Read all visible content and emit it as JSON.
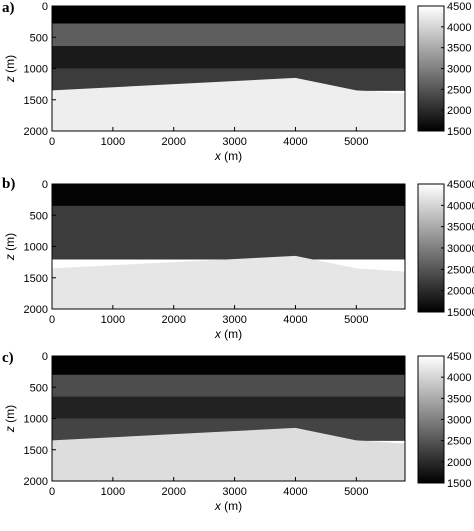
{
  "chart_data": [
    {
      "type": "heatmap",
      "panel": "a)",
      "xlabel": "x (m)",
      "ylabel": "z (m)",
      "xlim": [
        0,
        5800
      ],
      "ylim": [
        2000,
        0
      ],
      "xticks": [
        "0",
        "1000",
        "2000",
        "3000",
        "4000",
        "5000"
      ],
      "yticks": [
        "0",
        "500",
        "1000",
        "1500",
        "2000"
      ],
      "colorbar": {
        "min": 1500,
        "max": 4500,
        "ticks": [
          "1500",
          "2000",
          "2500",
          "3000",
          "3500",
          "4000",
          "4500"
        ],
        "colormap": "gray"
      },
      "layers": [
        {
          "top": 0,
          "bottom": 280,
          "value": 1500
        },
        {
          "top": 280,
          "bottom": 640,
          "value": 2600
        },
        {
          "top": 640,
          "bottom": 1000,
          "value": 1800
        },
        {
          "top": 1000,
          "bottom": 1350,
          "value": 2200
        },
        {
          "top": 1350,
          "bottom": 2000,
          "value": 4300
        }
      ],
      "boundary": {
        "x": [
          0,
          4000,
          5000,
          5800
        ],
        "z": [
          1350,
          1150,
          1350,
          1400
        ]
      }
    },
    {
      "type": "heatmap",
      "panel": "b)",
      "xlabel": "x (m)",
      "ylabel": "z (m)",
      "xlim": [
        0,
        5800
      ],
      "ylim": [
        2000,
        0
      ],
      "xticks": [
        "0",
        "1000",
        "2000",
        "3000",
        "4000",
        "5000"
      ],
      "yticks": [
        "0",
        "500",
        "1000",
        "1500",
        "2000"
      ],
      "colorbar": {
        "min": 15000,
        "max": 45000,
        "ticks": [
          "15000",
          "20000",
          "25000",
          "30000",
          "35000",
          "40000",
          "45000"
        ],
        "colormap": "gray"
      },
      "layers": [
        {
          "top": 0,
          "bottom": 350,
          "value": 15500
        },
        {
          "top": 350,
          "bottom": 1200,
          "value": 22000
        },
        {
          "top": 1200,
          "bottom": 2000,
          "value": 42000
        }
      ],
      "boundary": {
        "x": [
          0,
          4000,
          5000,
          5800
        ],
        "z": [
          1350,
          1150,
          1350,
          1400
        ]
      }
    },
    {
      "type": "heatmap",
      "panel": "c)",
      "xlabel": "x (m)",
      "ylabel": "z (m)",
      "xlim": [
        0,
        5800
      ],
      "ylim": [
        2000,
        0
      ],
      "xticks": [
        "0",
        "1000",
        "2000",
        "3000",
        "4000",
        "5000"
      ],
      "yticks": [
        "0",
        "500",
        "1000",
        "1500",
        "2000"
      ],
      "colorbar": {
        "min": 1500,
        "max": 4500,
        "ticks": [
          "1500",
          "2000",
          "2500",
          "3000",
          "3500",
          "4000",
          "4500"
        ],
        "colormap": "gray"
      },
      "layers": [
        {
          "top": 0,
          "bottom": 300,
          "value": 1500
        },
        {
          "top": 300,
          "bottom": 650,
          "value": 2400
        },
        {
          "top": 650,
          "bottom": 1000,
          "value": 1900
        },
        {
          "top": 1000,
          "bottom": 1350,
          "value": 2300
        },
        {
          "top": 1350,
          "bottom": 2000,
          "value": 4100
        }
      ],
      "boundary": {
        "x": [
          0,
          4000,
          5000,
          5800
        ],
        "z": [
          1350,
          1150,
          1350,
          1400
        ]
      }
    }
  ]
}
